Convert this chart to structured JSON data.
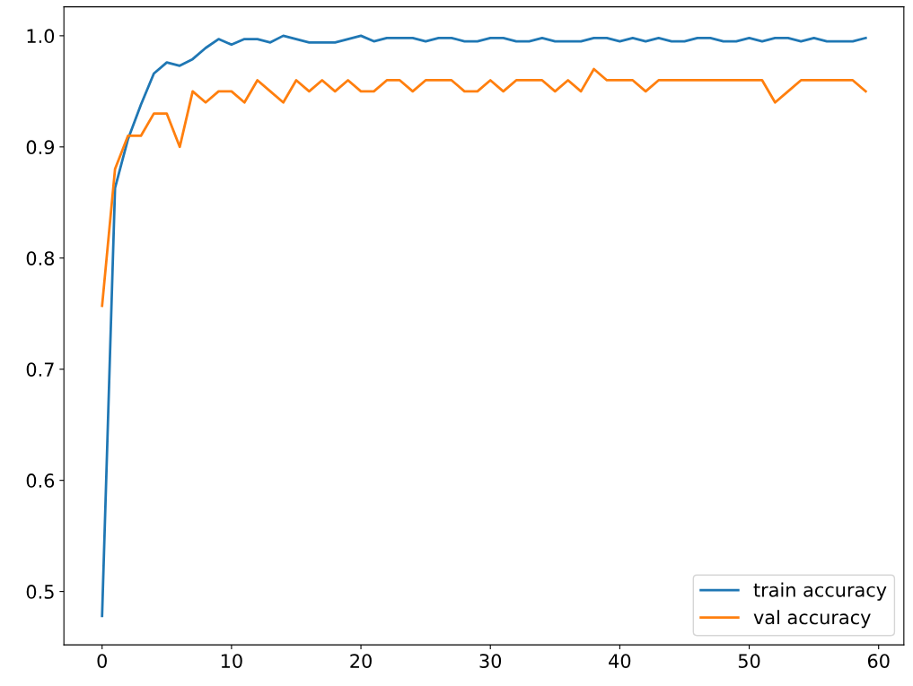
{
  "chart_data": {
    "type": "line",
    "x": [
      0,
      1,
      2,
      3,
      4,
      5,
      6,
      7,
      8,
      9,
      10,
      11,
      12,
      13,
      14,
      15,
      16,
      17,
      18,
      19,
      20,
      21,
      22,
      23,
      24,
      25,
      26,
      27,
      28,
      29,
      30,
      31,
      32,
      33,
      34,
      35,
      36,
      37,
      38,
      39,
      40,
      41,
      42,
      43,
      44,
      45,
      46,
      47,
      48,
      49,
      50,
      51,
      52,
      53,
      54,
      55,
      56,
      57,
      58,
      59
    ],
    "series": [
      {
        "name": "train accuracy",
        "color": "#1f77b4",
        "values": [
          0.478,
          0.863,
          0.907,
          0.938,
          0.966,
          0.976,
          0.973,
          0.979,
          0.989,
          0.997,
          0.992,
          0.997,
          0.997,
          0.994,
          1.0,
          0.997,
          0.994,
          0.994,
          0.994,
          0.997,
          1.0,
          0.995,
          0.998,
          0.998,
          0.998,
          0.995,
          0.998,
          0.998,
          0.995,
          0.995,
          0.998,
          0.998,
          0.995,
          0.995,
          0.998,
          0.995,
          0.995,
          0.995,
          0.998,
          0.998,
          0.995,
          0.998,
          0.995,
          0.998,
          0.995,
          0.995,
          0.998,
          0.998,
          0.995,
          0.995,
          0.998,
          0.995,
          0.998,
          0.998,
          0.995,
          0.998,
          0.995,
          0.995,
          0.995,
          0.998
        ]
      },
      {
        "name": "val accuracy",
        "color": "#ff7f0e",
        "values": [
          0.757,
          0.88,
          0.91,
          0.91,
          0.93,
          0.93,
          0.9,
          0.95,
          0.94,
          0.95,
          0.95,
          0.94,
          0.96,
          0.95,
          0.94,
          0.96,
          0.95,
          0.96,
          0.95,
          0.96,
          0.95,
          0.95,
          0.96,
          0.96,
          0.95,
          0.96,
          0.96,
          0.96,
          0.95,
          0.95,
          0.96,
          0.95,
          0.96,
          0.96,
          0.96,
          0.95,
          0.96,
          0.95,
          0.97,
          0.96,
          0.96,
          0.96,
          0.95,
          0.96,
          0.96,
          0.96,
          0.96,
          0.96,
          0.96,
          0.96,
          0.96,
          0.96,
          0.94,
          0.95,
          0.96,
          0.96,
          0.96,
          0.96,
          0.96,
          0.95
        ]
      }
    ],
    "xlim": [
      -2.95,
      61.95
    ],
    "ylim": [
      0.452,
      1.026
    ],
    "xticks": [
      0,
      10,
      20,
      30,
      40,
      50,
      60
    ],
    "yticks": [
      0.5,
      0.6,
      0.7,
      0.8,
      0.9,
      {
        "value": 1,
        "label": "1.0"
      }
    ],
    "legend": "lower right"
  }
}
